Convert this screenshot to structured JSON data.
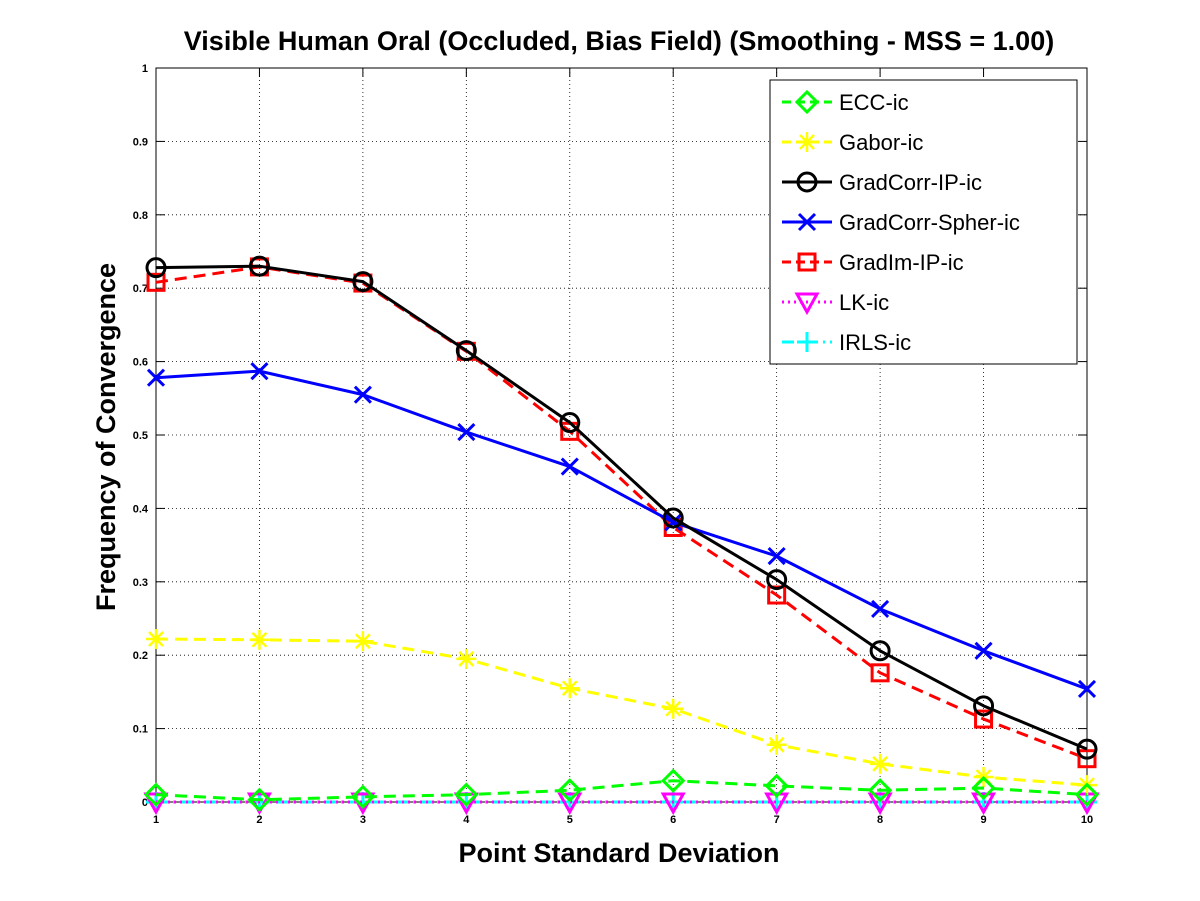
{
  "chart_data": {
    "type": "line",
    "title": "Visible Human Oral (Occluded, Bias Field) (Smoothing - MSS = 1.00)",
    "xlabel": "Point Standard Deviation",
    "ylabel": "Frequency of Convergence",
    "xlim": [
      1,
      10
    ],
    "ylim": [
      0,
      1
    ],
    "x": [
      1,
      2,
      3,
      4,
      5,
      6,
      7,
      8,
      9,
      10
    ],
    "xticks": [
      "1",
      "2",
      "3",
      "4",
      "5",
      "6",
      "7",
      "8",
      "9",
      "10"
    ],
    "yticks": [
      "0",
      "0.1",
      "0.2",
      "0.3",
      "0.4",
      "0.5",
      "0.6",
      "0.7",
      "0.8",
      "0.9",
      "1"
    ],
    "grid": true,
    "legend_position": "top-right",
    "series": [
      {
        "name": "ECC-ic",
        "color": "#00ff00",
        "marker": "diamond",
        "dash": "dashed",
        "values": [
          0.01,
          0.003,
          0.007,
          0.01,
          0.016,
          0.029,
          0.022,
          0.016,
          0.019,
          0.01
        ]
      },
      {
        "name": "Gabor-ic",
        "color": "#ffff00",
        "marker": "asterisk",
        "dash": "dashed",
        "values": [
          0.222,
          0.221,
          0.219,
          0.195,
          0.155,
          0.127,
          0.078,
          0.052,
          0.034,
          0.023
        ]
      },
      {
        "name": "GradCorr-IP-ic",
        "color": "#000000",
        "marker": "circle",
        "dash": "solid",
        "values": [
          0.728,
          0.73,
          0.709,
          0.615,
          0.517,
          0.387,
          0.303,
          0.206,
          0.131,
          0.072
        ]
      },
      {
        "name": "GradCorr-Spher-ic",
        "color": "#0000ff",
        "marker": "x",
        "dash": "solid",
        "values": [
          0.578,
          0.587,
          0.555,
          0.504,
          0.457,
          0.381,
          0.335,
          0.263,
          0.206,
          0.154
        ]
      },
      {
        "name": "GradIm-IP-ic",
        "color": "#ff0000",
        "marker": "square",
        "dash": "dashed",
        "values": [
          0.708,
          0.729,
          0.707,
          0.614,
          0.505,
          0.374,
          0.282,
          0.176,
          0.113,
          0.059
        ]
      },
      {
        "name": "LK-ic",
        "color": "#ff00ff",
        "marker": "triangle-down",
        "dash": "dotted",
        "values": [
          0,
          0,
          0,
          0,
          0,
          0,
          0,
          0,
          0,
          0
        ]
      },
      {
        "name": "IRLS-ic",
        "color": "#00ffff",
        "marker": "plus",
        "dash": "dashdot",
        "values": [
          0,
          0,
          0,
          0,
          0,
          0,
          0,
          0,
          0,
          0
        ]
      }
    ]
  }
}
